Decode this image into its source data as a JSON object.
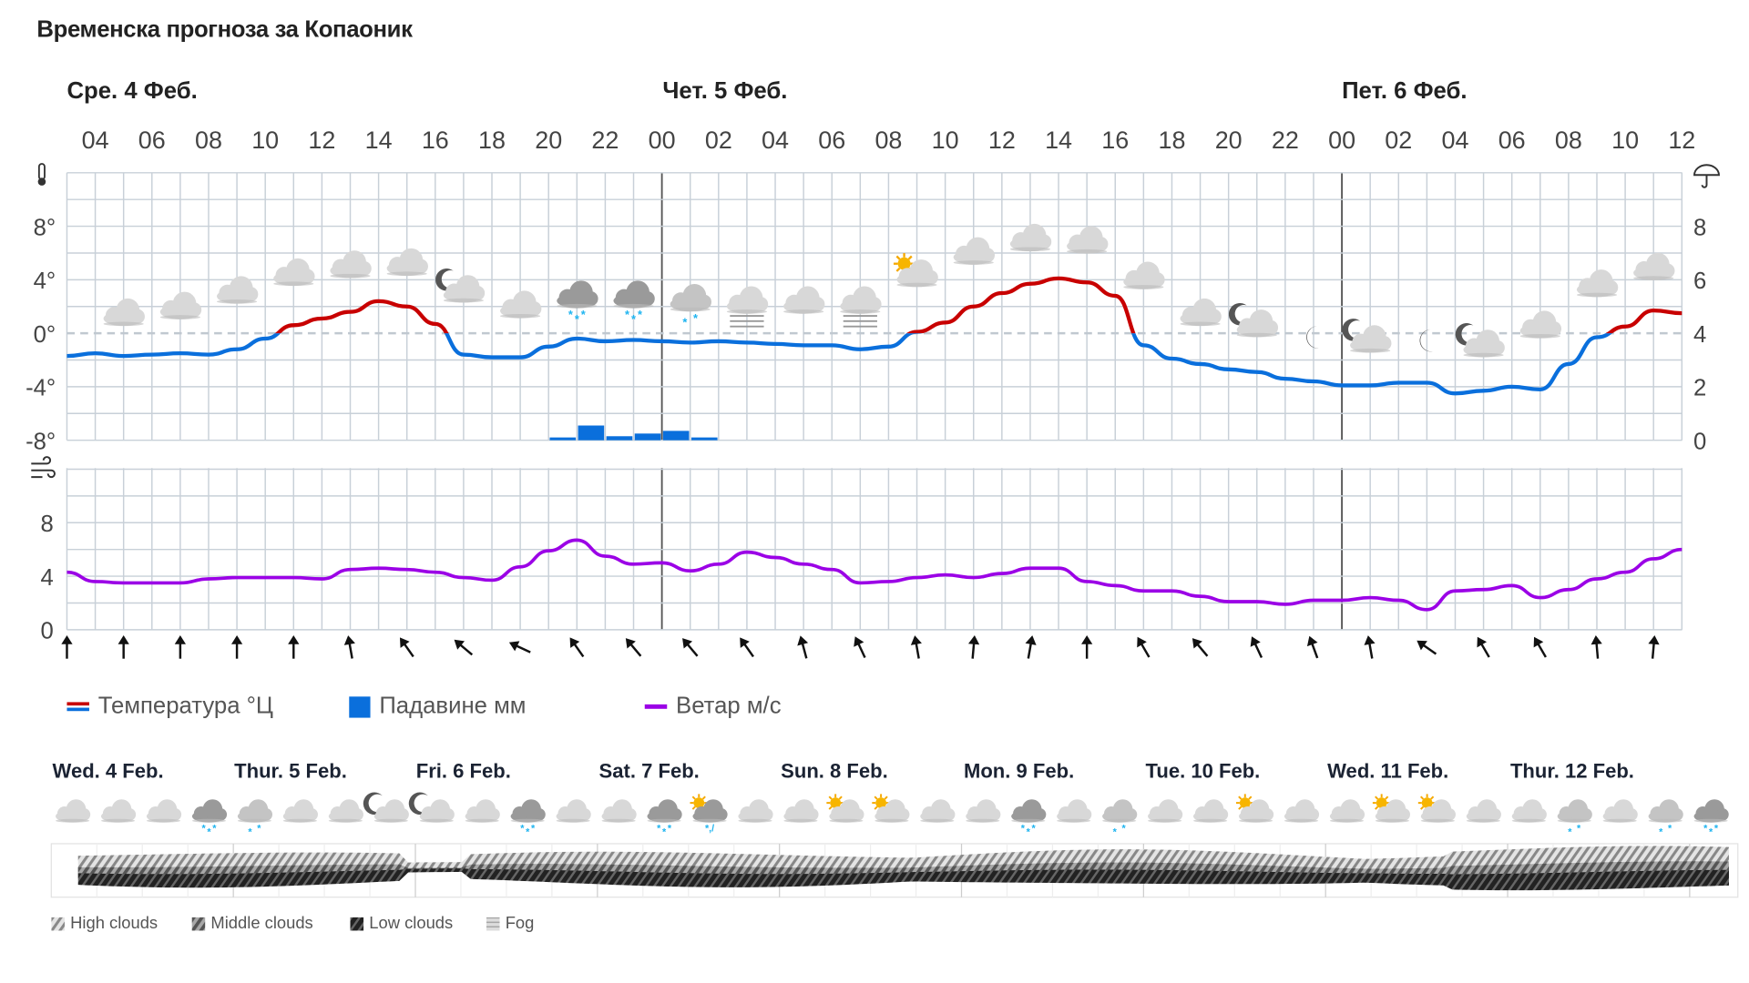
{
  "title": "Временска прогноза за Копаоник",
  "days_top": [
    "Сре. 4 Феб.",
    "Чет. 5 Феб.",
    "Пет. 6 Феб."
  ],
  "legend": {
    "temperature": "Температура °Ц",
    "precipitation": "Падавине мм",
    "wind": "Ветар м/с"
  },
  "colors": {
    "temp_cold": "#0a6fdc",
    "temp_warm": "#c80000",
    "precip": "#0a6fdc",
    "wind": "#9b00e6",
    "snow": "#1eb4f0"
  },
  "chart_data": [
    {
      "type": "line",
      "x_ticks": [
        "04",
        "06",
        "08",
        "10",
        "12",
        "14",
        "16",
        "18",
        "20",
        "22",
        "00",
        "02",
        "04",
        "06",
        "08",
        "10",
        "12",
        "14",
        "16",
        "18",
        "20",
        "22",
        "00",
        "02",
        "04",
        "06",
        "08",
        "10",
        "12"
      ],
      "x_hours_from": "Сре. 4 Феб. 03:00",
      "x_hours": [
        3,
        4,
        5,
        6,
        7,
        8,
        9,
        10,
        11,
        12,
        13,
        14,
        15,
        16,
        17,
        18,
        19,
        20,
        21,
        22,
        23,
        24,
        25,
        26,
        27,
        28,
        29,
        30,
        31,
        32,
        33,
        34,
        35,
        36,
        37,
        38,
        39,
        40,
        41,
        42,
        43,
        44,
        45,
        46,
        47,
        48,
        49,
        50,
        51,
        52,
        53,
        54,
        55,
        56,
        57,
        58,
        59,
        60
      ],
      "y_left_ticks": [
        "8°",
        "4°",
        "0°",
        "-4°",
        "-8°"
      ],
      "y_left_range": [
        -8,
        12
      ],
      "y_right_ticks": [
        "8",
        "6",
        "4",
        "2",
        "0"
      ],
      "y_right_range": [
        0,
        10
      ],
      "temperature": [
        -1.7,
        -1.5,
        -1.7,
        -1.6,
        -1.5,
        -1.6,
        -1.2,
        -0.4,
        0.6,
        1.1,
        1.6,
        2.4,
        2.0,
        0.7,
        -1.6,
        -1.8,
        -1.8,
        -1.0,
        -0.4,
        -0.6,
        -0.5,
        -0.6,
        -0.7,
        -0.6,
        -0.7,
        -0.8,
        -0.9,
        -0.9,
        -1.2,
        -1.0,
        0.1,
        0.8,
        2.0,
        3.0,
        3.7,
        4.1,
        3.8,
        2.8,
        -0.9,
        -1.9,
        -2.3,
        -2.7,
        -2.9,
        -3.4,
        -3.6,
        -3.9,
        -3.9,
        -3.7,
        -3.7,
        -4.5,
        -4.3,
        -4.0,
        -4.2,
        -2.3,
        -0.3,
        0.5,
        1.7,
        1.5
      ],
      "precipitation": [
        {
          "start_hour": 20,
          "mm": 0.1
        },
        {
          "start_hour": 21,
          "mm": 0.55
        },
        {
          "start_hour": 22,
          "mm": 0.15
        },
        {
          "start_hour": 23,
          "mm": 0.25
        },
        {
          "start_hour": 24,
          "mm": 0.35
        },
        {
          "start_hour": 25,
          "mm": 0.05
        }
      ],
      "grid": true
    },
    {
      "type": "line",
      "y_ticks": [
        "8",
        "4",
        "0"
      ],
      "y_range": [
        0,
        12
      ],
      "wind": [
        4.3,
        3.6,
        3.5,
        3.5,
        3.5,
        3.8,
        3.9,
        3.9,
        3.9,
        3.8,
        4.5,
        4.6,
        4.5,
        4.3,
        3.9,
        3.7,
        4.7,
        5.9,
        6.7,
        5.5,
        4.9,
        5.0,
        4.4,
        4.9,
        5.8,
        5.4,
        4.9,
        4.5,
        3.5,
        3.6,
        3.9,
        4.1,
        3.9,
        4.2,
        4.6,
        4.6,
        3.6,
        3.3,
        2.9,
        2.9,
        2.5,
        2.1,
        2.1,
        1.9,
        2.2,
        2.2,
        2.4,
        2.2,
        1.5,
        2.9,
        3.0,
        3.3,
        2.4,
        3.0,
        3.8,
        4.3,
        5.3,
        6.0
      ],
      "wind_arrow_hours": [
        3,
        5,
        7,
        9,
        11,
        13,
        15,
        17,
        19,
        21,
        23,
        25,
        27,
        29,
        31,
        33,
        35,
        37,
        39,
        41,
        43,
        45,
        47,
        49,
        51,
        53,
        55,
        57,
        59
      ],
      "wind_arrow_rotation_deg": [
        0,
        0,
        0,
        0,
        0,
        -10,
        -35,
        -50,
        -65,
        -35,
        -40,
        -40,
        -35,
        -15,
        -25,
        -10,
        5,
        10,
        0,
        -30,
        -40,
        -25,
        -20,
        -10,
        -55,
        -30,
        -30,
        -5,
        5
      ],
      "grid": true
    }
  ],
  "top_icons": [
    "cloud",
    "cloud",
    "cloud",
    "cloud",
    "cloud",
    "cloud",
    "moon-cloud",
    "cloud",
    "snow-dark",
    "snow-dark",
    "snow",
    "fog",
    "cloud",
    "fog",
    "sun-cloud",
    "cloud",
    "cloud",
    "cloud",
    "cloud",
    "cloud",
    "moon-cloud",
    "moon",
    "moon-cloud",
    "moon",
    "moon-cloud",
    "cloud",
    "cloud",
    "cloud"
  ],
  "week": {
    "days": [
      "Wed. 4 Feb.",
      "Thur. 5 Feb.",
      "Fri. 6 Feb.",
      "Sat. 7 Feb.",
      "Sun. 8 Feb.",
      "Mon. 9 Feb.",
      "Tue. 10 Feb.",
      "Wed. 11 Feb.",
      "Thur. 12 Feb."
    ],
    "icons": [
      "cloud",
      "cloud",
      "cloud",
      "snow-dark",
      "snow",
      "cloud",
      "cloud",
      "moon-cloud",
      "moon-cloud",
      "cloud",
      "snow-dark",
      "cloud",
      "cloud",
      "snow-dark",
      "sun-sleet",
      "cloud",
      "cloud",
      "sun-cloud",
      "sun-cloud",
      "cloud",
      "cloud",
      "snow-dark",
      "cloud",
      "snow",
      "cloud",
      "cloud",
      "sun-cloud",
      "cloud",
      "cloud",
      "sun-cloud",
      "sun-cloud",
      "cloud",
      "cloud",
      "snow",
      "cloud",
      "snow",
      "snow-dark"
    ],
    "legend": {
      "high": "High clouds",
      "middle": "Middle clouds",
      "low": "Low clouds",
      "fog": "Fog"
    }
  }
}
